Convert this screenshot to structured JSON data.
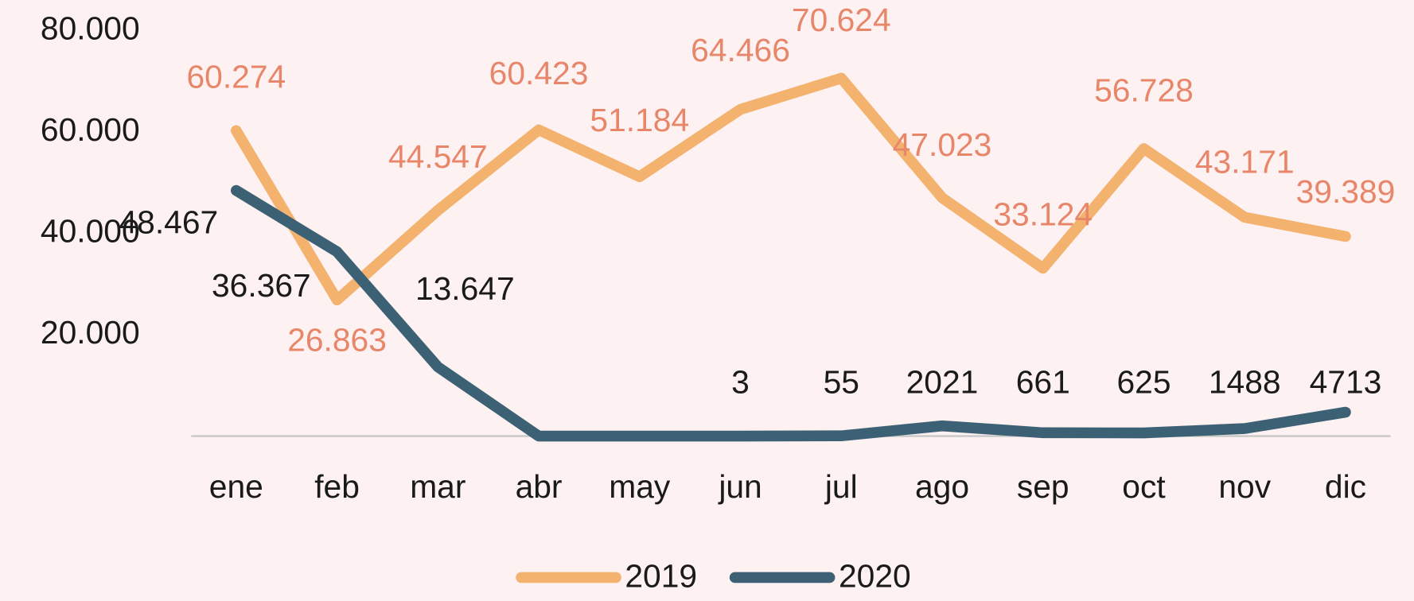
{
  "chart_data": {
    "type": "line",
    "categories": [
      "ene",
      "feb",
      "mar",
      "abr",
      "may",
      "jun",
      "jul",
      "ago",
      "sep",
      "oct",
      "nov",
      "dic"
    ],
    "series": [
      {
        "name": "2019",
        "color": "#f4b26f",
        "label_color": "#e8866a",
        "values": [
          60274,
          26863,
          44547,
          60423,
          51184,
          64466,
          70624,
          47023,
          33124,
          56728,
          43171,
          39389
        ],
        "value_labels": [
          "60.274",
          "26.863",
          "44.547",
          "60.423",
          "51.184",
          "64.466",
          "70.624",
          "47.023",
          "33.124",
          "56.728",
          "43.171",
          "39.389"
        ]
      },
      {
        "name": "2020",
        "color": "#3d6174",
        "label_color": "#1a1a1a",
        "values": [
          48467,
          36367,
          13647,
          0,
          0,
          3,
          55,
          2021,
          661,
          625,
          1488,
          4713
        ],
        "value_labels": [
          "48.467",
          "36.367",
          "13.647",
          null,
          null,
          "3",
          "55",
          "2021",
          "661",
          "625",
          "1488",
          "4713"
        ]
      }
    ],
    "ylim": [
      0,
      80000
    ],
    "yticks": [
      {
        "value": 20000,
        "label": "20.000"
      },
      {
        "value": 40000,
        "label": "40.000"
      },
      {
        "value": 60000,
        "label": "60.000"
      },
      {
        "value": 80000,
        "label": "80.000"
      }
    ],
    "grid": false,
    "legend": "bottom"
  }
}
